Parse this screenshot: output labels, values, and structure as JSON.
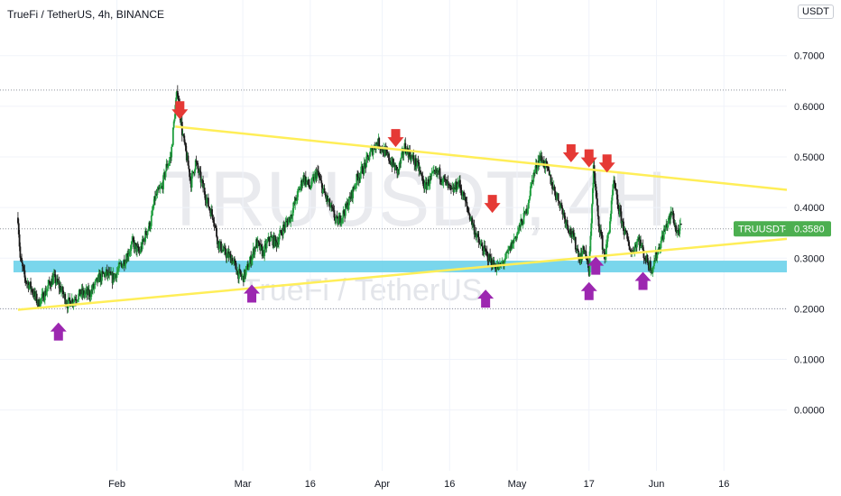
{
  "chart_title": "TrueFi / TetherUS, 4h, BINANCE",
  "unit": "USDT",
  "watermark": {
    "symbol": "TRUUSDT, 4H",
    "name": "TrueFi / TetherUS"
  },
  "price_badge": {
    "label": "TRUUSDT",
    "value": "0.3580",
    "price": 0.358
  },
  "colors": {
    "candle_up": "#1e9e3e",
    "candle_down": "#1a1a1a",
    "trendline": "#ffee58",
    "support_zone": "#6cd2ea",
    "arrow_down": "#e53935",
    "arrow_up": "#9c27b0",
    "badge": "#4caf50"
  },
  "chart_data": {
    "type": "line",
    "xlabel": "",
    "ylabel": "",
    "x_ticks": [
      "Feb",
      "Mar",
      "16",
      "Apr",
      "16",
      "May",
      "17",
      "Jun",
      "16"
    ],
    "x_tick_days": [
      31,
      59,
      74,
      90,
      105,
      120,
      136,
      151,
      166
    ],
    "y_ticks": [
      "0.7000",
      "0.6000",
      "0.5000",
      "0.4000",
      "0.3000",
      "0.2000",
      "0.1000",
      "0.0000"
    ],
    "ylim": [
      -0.12,
      0.81
    ],
    "xlim_days": [
      5,
      180
    ],
    "price_path": [
      [
        9,
        0.38
      ],
      [
        9.5,
        0.3
      ],
      [
        10.5,
        0.26
      ],
      [
        12,
        0.24
      ],
      [
        13.5,
        0.21
      ],
      [
        15,
        0.23
      ],
      [
        16,
        0.25
      ],
      [
        17,
        0.26
      ],
      [
        18.5,
        0.24
      ],
      [
        20,
        0.21
      ],
      [
        21.5,
        0.22
      ],
      [
        23,
        0.23
      ],
      [
        25,
        0.23
      ],
      [
        27,
        0.26
      ],
      [
        28.5,
        0.27
      ],
      [
        30,
        0.26
      ],
      [
        31.5,
        0.28
      ],
      [
        33,
        0.3
      ],
      [
        34.5,
        0.33
      ],
      [
        36,
        0.31
      ],
      [
        37.5,
        0.35
      ],
      [
        38.5,
        0.37
      ],
      [
        39.5,
        0.42
      ],
      [
        41,
        0.44
      ],
      [
        42,
        0.48
      ],
      [
        43,
        0.5
      ],
      [
        44,
        0.6
      ],
      [
        44.5,
        0.63
      ],
      [
        45.5,
        0.55
      ],
      [
        46.5,
        0.5
      ],
      [
        47.5,
        0.45
      ],
      [
        48.5,
        0.49
      ],
      [
        49.5,
        0.46
      ],
      [
        50.5,
        0.43
      ],
      [
        51.5,
        0.4
      ],
      [
        52.5,
        0.38
      ],
      [
        53.5,
        0.33
      ],
      [
        55,
        0.31
      ],
      [
        56.5,
        0.3
      ],
      [
        58,
        0.27
      ],
      [
        59,
        0.26
      ],
      [
        60.5,
        0.29
      ],
      [
        62,
        0.33
      ],
      [
        63.5,
        0.31
      ],
      [
        65,
        0.34
      ],
      [
        66.5,
        0.33
      ],
      [
        68,
        0.36
      ],
      [
        69.5,
        0.38
      ],
      [
        71,
        0.42
      ],
      [
        72.5,
        0.46
      ],
      [
        74,
        0.44
      ],
      [
        75.5,
        0.47
      ],
      [
        77,
        0.43
      ],
      [
        78.5,
        0.4
      ],
      [
        80,
        0.37
      ],
      [
        81.5,
        0.39
      ],
      [
        83,
        0.42
      ],
      [
        84.5,
        0.46
      ],
      [
        86,
        0.48
      ],
      [
        87.5,
        0.51
      ],
      [
        89,
        0.53
      ],
      [
        90.5,
        0.51
      ],
      [
        92,
        0.49
      ],
      [
        93.5,
        0.47
      ],
      [
        95,
        0.52
      ],
      [
        96.5,
        0.5
      ],
      [
        98,
        0.48
      ],
      [
        99.5,
        0.44
      ],
      [
        101,
        0.46
      ],
      [
        102.5,
        0.47
      ],
      [
        104,
        0.45
      ],
      [
        105.5,
        0.43
      ],
      [
        107,
        0.45
      ],
      [
        108.5,
        0.41
      ],
      [
        110,
        0.37
      ],
      [
        111.5,
        0.33
      ],
      [
        113,
        0.31
      ],
      [
        114.5,
        0.29
      ],
      [
        116,
        0.28
      ],
      [
        117.5,
        0.3
      ],
      [
        119,
        0.33
      ],
      [
        120.5,
        0.36
      ],
      [
        122,
        0.39
      ],
      [
        123.5,
        0.46
      ],
      [
        125,
        0.5
      ],
      [
        126.5,
        0.48
      ],
      [
        128,
        0.44
      ],
      [
        129.5,
        0.41
      ],
      [
        131,
        0.37
      ],
      [
        132.5,
        0.34
      ],
      [
        134,
        0.3
      ],
      [
        135,
        0.32
      ],
      [
        136,
        0.27
      ],
      [
        137,
        0.48
      ],
      [
        138,
        0.38
      ],
      [
        139.5,
        0.3
      ],
      [
        140.5,
        0.36
      ],
      [
        141.5,
        0.45
      ],
      [
        142.5,
        0.4
      ],
      [
        144,
        0.35
      ],
      [
        145.5,
        0.31
      ],
      [
        147,
        0.34
      ],
      [
        148.5,
        0.3
      ],
      [
        150,
        0.28
      ],
      [
        151.5,
        0.32
      ],
      [
        153,
        0.36
      ],
      [
        154.5,
        0.39
      ],
      [
        155.5,
        0.35
      ],
      [
        156.5,
        0.36
      ]
    ],
    "dotted_levels": [
      0.632,
      0.358,
      0.2
    ],
    "trendlines": [
      {
        "from": [
          44,
          0.56
        ],
        "to": [
          180,
          0.435
        ]
      },
      {
        "from": [
          9,
          0.198
        ],
        "to": [
          180,
          0.338
        ]
      }
    ],
    "support_zone": {
      "from_day": 8,
      "to_day": 180,
      "low": 0.272,
      "high": 0.295
    },
    "arrows_down": [
      [
        45,
        0.585
      ],
      [
        93,
        0.53
      ],
      [
        114.5,
        0.4
      ],
      [
        132,
        0.5
      ],
      [
        136,
        0.49
      ],
      [
        140,
        0.48
      ]
    ],
    "arrows_up": [
      [
        18,
        0.155
      ],
      [
        61,
        0.23
      ],
      [
        113,
        0.22
      ],
      [
        136,
        0.235
      ],
      [
        137.5,
        0.285
      ],
      [
        148,
        0.255
      ]
    ]
  }
}
